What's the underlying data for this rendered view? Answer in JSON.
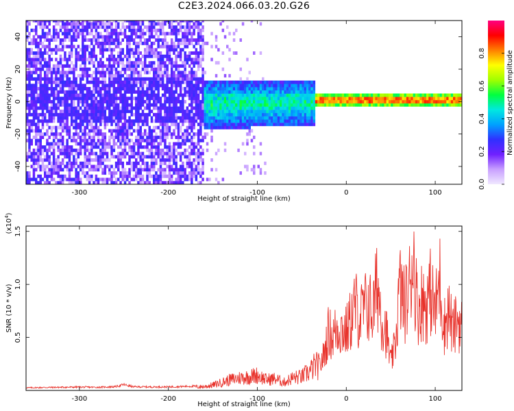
{
  "title": "C2E3.2024.066.03.20.G26",
  "chart_data": [
    {
      "type": "heatmap",
      "title": "C2E3.2024.066.03.20.G26",
      "xlabel": "Height of straight line (km)",
      "ylabel": "Frequency (Hz)",
      "xlim": [
        -360,
        130
      ],
      "ylim": [
        -51,
        50
      ],
      "xticks": [
        -300,
        -200,
        -100,
        0,
        100
      ],
      "yticks": [
        -40,
        -20,
        0,
        20,
        40
      ],
      "colorbar": {
        "label": "Normalized spectral amplitude",
        "range": [
          0,
          1
        ],
        "ticks": [
          "0.0",
          "0.2",
          "0.4",
          "0.6",
          "0.8"
        ],
        "tick_values": [
          0,
          0.2,
          0.4,
          0.6,
          0.8
        ],
        "colors": [
          "#f0e8ff",
          "#c8a0ff",
          "#7020ff",
          "#3030ff",
          "#00a0ff",
          "#00e8e0",
          "#00ff40",
          "#a0ff00",
          "#ffff00",
          "#ff8000",
          "#ff0000",
          "#ff0080"
        ]
      },
      "regions": [
        {
          "x_range": [
            -360,
            -160
          ],
          "spread_hz": [
            -50,
            50
          ],
          "amplitude": 0.15,
          "description_level": "noise"
        },
        {
          "x_range": [
            -160,
            -35
          ],
          "center_hz": 0,
          "spread_hz": [
            -18,
            12
          ],
          "amplitude": 0.45
        },
        {
          "x_range": [
            -35,
            130
          ],
          "center_hz": 0,
          "spread_hz": [
            -4,
            4
          ],
          "amplitude": 0.95
        }
      ]
    },
    {
      "type": "line",
      "xlabel": "Height of straight line (km)",
      "ylabel": "SNR (10 * v/v)",
      "multiplier_label": "(x10",
      "multiplier_exp": "4",
      "xlim": [
        -360,
        130
      ],
      "ylim": [
        0,
        15500
      ],
      "xticks": [
        -300,
        -200,
        -100,
        0,
        100
      ],
      "yticks": [
        5000,
        10000,
        15000
      ],
      "ytick_labels": [
        "0.5",
        "1.0",
        "1.5"
      ],
      "color": "#e8332c",
      "series": [
        {
          "x": [
            -360,
            -340,
            -320,
            -300,
            -280,
            -260,
            -250,
            -240,
            -220,
            -200,
            -180,
            -160,
            -150,
            -140,
            -130,
            -120,
            -110,
            -100,
            -90,
            -80,
            -70,
            -60,
            -50,
            -40,
            -35,
            -30,
            -25,
            -20,
            -15,
            -10,
            -5,
            0,
            5,
            10,
            15,
            20,
            25,
            30,
            35,
            40,
            45,
            50,
            55,
            60,
            65,
            70,
            75,
            80,
            85,
            90,
            95,
            100,
            105,
            110,
            115,
            120,
            125,
            130
          ],
          "values": [
            250,
            280,
            300,
            320,
            300,
            350,
            550,
            350,
            330,
            340,
            380,
            420,
            600,
            900,
            1200,
            1400,
            1500,
            1700,
            1200,
            1300,
            900,
            1400,
            1500,
            2200,
            2800,
            2600,
            4000,
            6500,
            6000,
            7000,
            6800,
            6500,
            7800,
            9500,
            8000,
            9000,
            9500,
            8500,
            12000,
            8000,
            6500,
            3000,
            5000,
            11500,
            9500,
            10500,
            15500,
            9000,
            10000,
            9500,
            11000,
            8500,
            12500,
            7000,
            9000,
            6500,
            8000,
            7000
          ]
        }
      ]
    }
  ]
}
